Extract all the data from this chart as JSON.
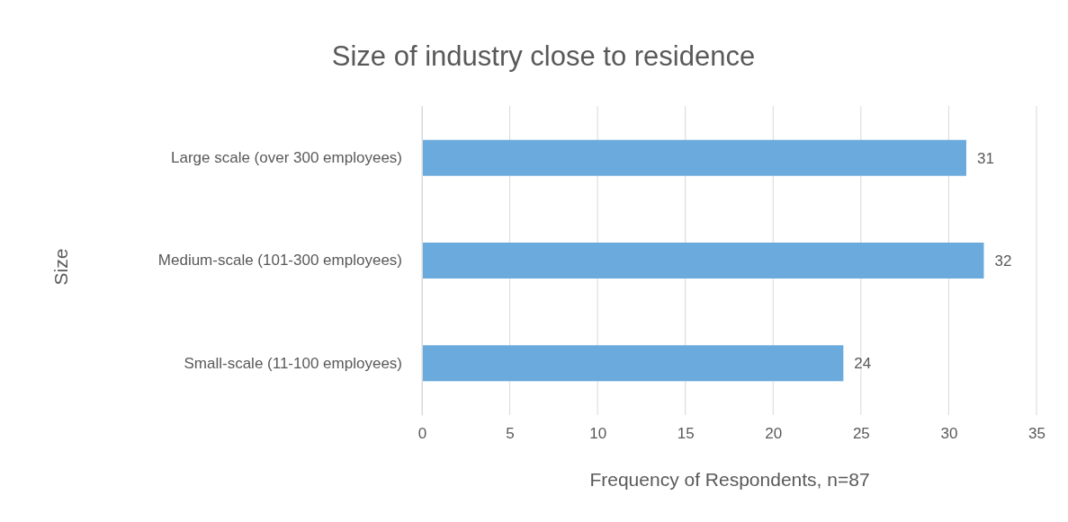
{
  "chart_data": {
    "type": "bar",
    "orientation": "horizontal",
    "title": "Size of industry close to residence",
    "xlabel": "Frequency of Respondents, n=87",
    "ylabel": "Size",
    "categories": [
      "Large scale (over 300 employees)",
      "Medium-scale (101-300 employees)",
      "Small-scale (11-100 employees)"
    ],
    "values": [
      31,
      32,
      24
    ],
    "color": "#6aaadc",
    "xlim": [
      0,
      35
    ],
    "xticks": [
      0,
      5,
      10,
      15,
      20,
      25,
      30,
      35
    ],
    "grid": "x",
    "data_labels": true
  }
}
